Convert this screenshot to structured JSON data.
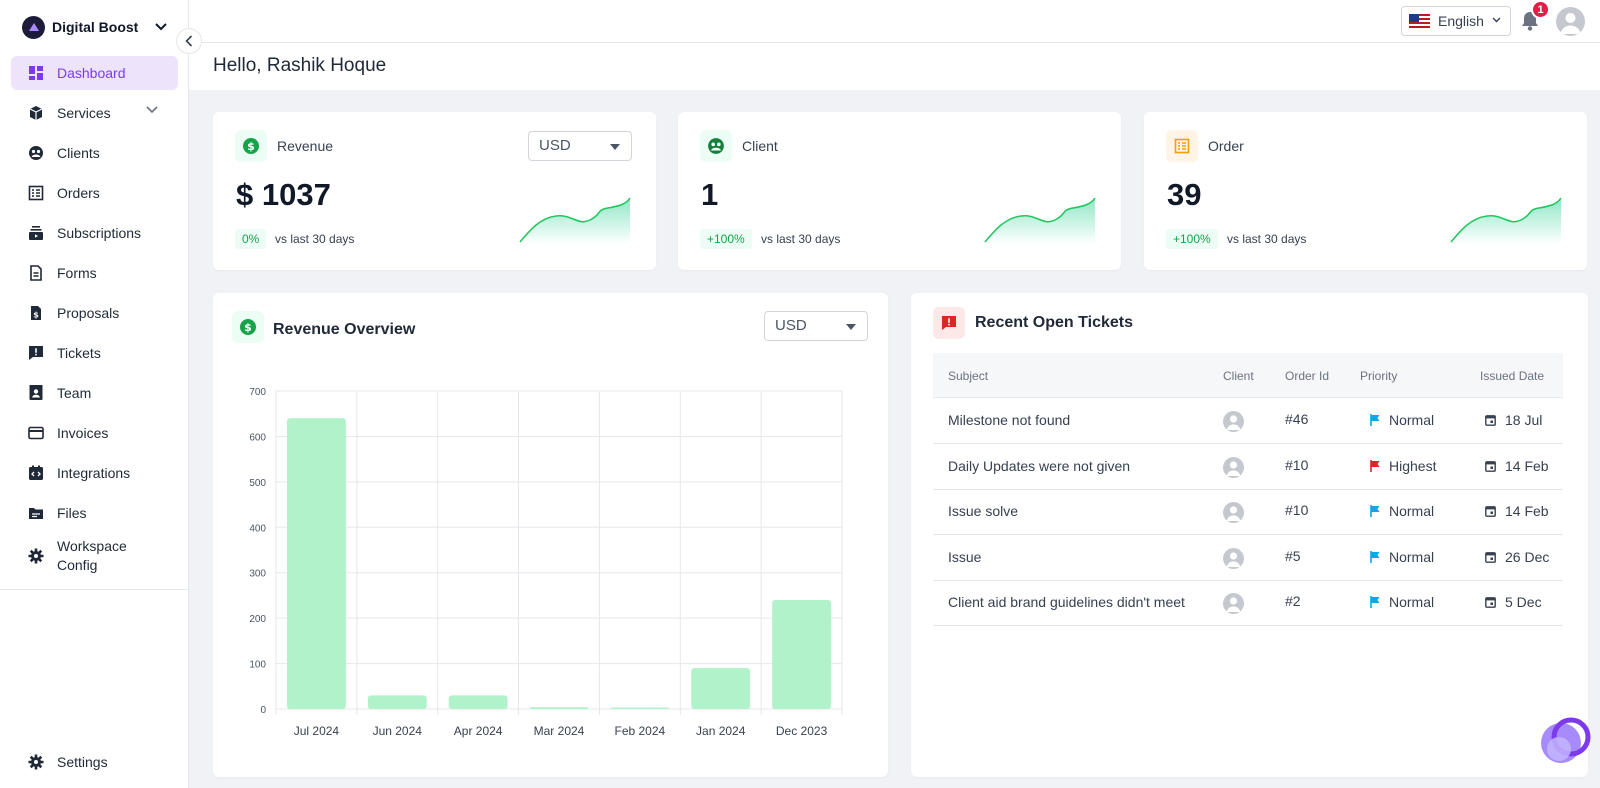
{
  "workspace": {
    "name": "Digital Boost"
  },
  "sidebar": {
    "items": [
      {
        "label": "Dashboard"
      },
      {
        "label": "Services"
      },
      {
        "label": "Clients"
      },
      {
        "label": "Orders"
      },
      {
        "label": "Subscriptions"
      },
      {
        "label": "Forms"
      },
      {
        "label": "Proposals"
      },
      {
        "label": "Tickets"
      },
      {
        "label": "Team"
      },
      {
        "label": "Invoices"
      },
      {
        "label": "Integrations"
      },
      {
        "label": "Files"
      },
      {
        "label": "Workspace Config"
      }
    ],
    "settings_label": "Settings"
  },
  "topbar": {
    "language": "English",
    "notification_count": "1"
  },
  "greeting": "Hello, Rashik Hoque",
  "kpis": {
    "revenue": {
      "title": "Revenue",
      "value": "$ 1037",
      "delta": "0%",
      "vs": "vs last 30 days",
      "currency": "USD"
    },
    "client": {
      "title": "Client",
      "value": "1",
      "delta": "+100%",
      "vs": "vs last 30 days"
    },
    "order": {
      "title": "Order",
      "value": "39",
      "delta": "+100%",
      "vs": "vs last 30 days"
    }
  },
  "revenue_overview": {
    "title": "Revenue Overview",
    "currency": "USD"
  },
  "chart_data": {
    "type": "bar",
    "categories": [
      "Jul 2024",
      "Jun 2024",
      "Apr 2024",
      "Mar 2024",
      "Feb 2024",
      "Jan 2024",
      "Dec 2023"
    ],
    "values": [
      640,
      30,
      30,
      4,
      2,
      90,
      240
    ],
    "yticks": [
      0,
      100,
      200,
      300,
      400,
      500,
      600,
      700
    ],
    "ylim": [
      0,
      700
    ],
    "color": "#b1f2cb",
    "grid": true
  },
  "tickets": {
    "title": "Recent Open Tickets",
    "columns": {
      "subject": "Subject",
      "client": "Client",
      "order_id": "Order Id",
      "priority": "Priority",
      "issued_date": "Issued Date"
    },
    "rows": [
      {
        "subject": "Milestone not found",
        "order_id": "#46",
        "priority": "Normal",
        "priority_color": "#0ea5e9",
        "date": "18 Jul"
      },
      {
        "subject": "Daily Updates were not given",
        "order_id": "#10",
        "priority": "Highest",
        "priority_color": "#dc2626",
        "date": "14 Feb"
      },
      {
        "subject": "Issue solve",
        "order_id": "#10",
        "priority": "Normal",
        "priority_color": "#0ea5e9",
        "date": "14 Feb"
      },
      {
        "subject": "Issue",
        "order_id": "#5",
        "priority": "Normal",
        "priority_color": "#0ea5e9",
        "date": "26 Dec"
      },
      {
        "subject": "Client aid brand guidelines didn't meet",
        "order_id": "#2",
        "priority": "Normal",
        "priority_color": "#0ea5e9",
        "date": "5 Dec"
      }
    ]
  },
  "colors": {
    "accent": "#7c3aed",
    "active_bg": "#ede4fb",
    "positive": "#16a34a",
    "bar": "#b1f2cb"
  }
}
